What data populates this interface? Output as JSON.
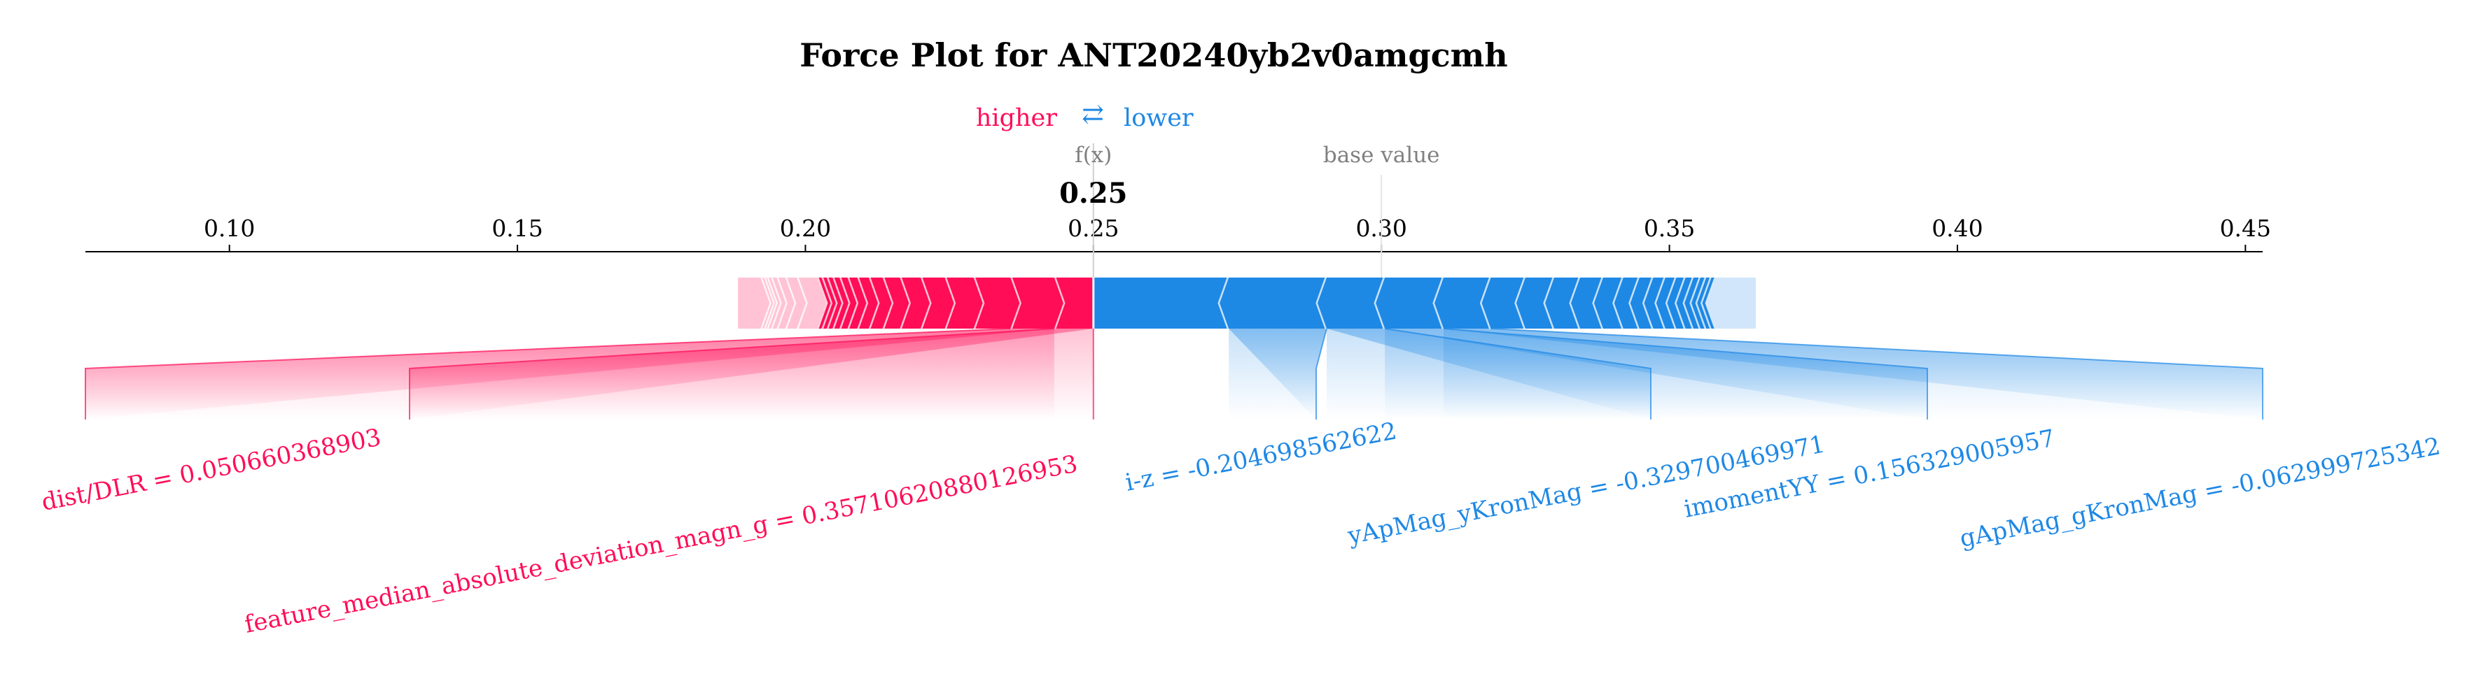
{
  "chart_data": {
    "type": "force",
    "title": "Force Plot for ANT20240yb2v0amgcmh",
    "legend": {
      "higher": "higher",
      "arrows": "⇄",
      "lower": "lower"
    },
    "fx_label": "f(x)",
    "fx_value": 0.25,
    "fx_text": "0.25",
    "base_label": "base value",
    "base_value": 0.3,
    "xlim": [
      0.075,
      0.453
    ],
    "ticks": [
      {
        "value": 0.1,
        "label": "0.10"
      },
      {
        "value": 0.15,
        "label": "0.15"
      },
      {
        "value": 0.2,
        "label": "0.20"
      },
      {
        "value": 0.25,
        "label": "0.25"
      },
      {
        "value": 0.3,
        "label": "0.30"
      },
      {
        "value": 0.35,
        "label": "0.35"
      },
      {
        "value": 0.4,
        "label": "0.40"
      },
      {
        "value": 0.45,
        "label": "0.45"
      }
    ],
    "positive_segments": [
      {
        "start": 0.25,
        "end": 0.2432
      },
      {
        "start": 0.2432,
        "end": 0.2356
      },
      {
        "start": 0.2356,
        "end": 0.2292
      },
      {
        "start": 0.2292,
        "end": 0.2242
      },
      {
        "start": 0.2242,
        "end": 0.22
      },
      {
        "start": 0.22,
        "end": 0.2164
      },
      {
        "start": 0.2164,
        "end": 0.2134
      },
      {
        "start": 0.2134,
        "end": 0.211
      },
      {
        "start": 0.211,
        "end": 0.209
      },
      {
        "start": 0.209,
        "end": 0.2073
      },
      {
        "start": 0.2073,
        "end": 0.2059
      },
      {
        "start": 0.2059,
        "end": 0.2047
      },
      {
        "start": 0.2047,
        "end": 0.2037
      },
      {
        "start": 0.2037,
        "end": 0.2028
      },
      {
        "start": 0.2028,
        "end": 0.202
      },
      {
        "start": 0.202,
        "end": 0.1985
      },
      {
        "start": 0.1985,
        "end": 0.1965
      },
      {
        "start": 0.1965,
        "end": 0.195
      },
      {
        "start": 0.195,
        "end": 0.194
      },
      {
        "start": 0.194,
        "end": 0.1933
      },
      {
        "start": 0.1933,
        "end": 0.1928
      },
      {
        "start": 0.1928,
        "end": 0.1922
      },
      {
        "start": 0.1922,
        "end": 0.1883
      }
    ],
    "negative_segments": [
      {
        "start": 0.25,
        "end": 0.2735
      },
      {
        "start": 0.2735,
        "end": 0.2905
      },
      {
        "start": 0.2905,
        "end": 0.3006
      },
      {
        "start": 0.3006,
        "end": 0.3108
      },
      {
        "start": 0.3108,
        "end": 0.319
      },
      {
        "start": 0.319,
        "end": 0.325
      },
      {
        "start": 0.325,
        "end": 0.33
      },
      {
        "start": 0.33,
        "end": 0.3345
      },
      {
        "start": 0.3345,
        "end": 0.3385
      },
      {
        "start": 0.3385,
        "end": 0.342
      },
      {
        "start": 0.342,
        "end": 0.3448
      },
      {
        "start": 0.3448,
        "end": 0.3472
      },
      {
        "start": 0.3472,
        "end": 0.3493
      },
      {
        "start": 0.3493,
        "end": 0.3512
      },
      {
        "start": 0.3512,
        "end": 0.3528
      },
      {
        "start": 0.3528,
        "end": 0.3542
      },
      {
        "start": 0.3542,
        "end": 0.3554
      },
      {
        "start": 0.3554,
        "end": 0.3564
      },
      {
        "start": 0.3564,
        "end": 0.3573
      },
      {
        "start": 0.3573,
        "end": 0.3581
      },
      {
        "start": 0.3581,
        "end": 0.365
      }
    ],
    "features": [
      {
        "text": "dist/DLR = 0.050660368903",
        "side": "positive",
        "start": 0.2432,
        "end": 0.2356,
        "tier": 0
      },
      {
        "text": "feature_median_absolute_deviation_magn_g = 0.35710620880126953",
        "side": "positive",
        "start": 0.25,
        "end": 0.2432,
        "tier": 1
      },
      {
        "text": "i-z = -0.204698562622",
        "side": "negative",
        "start": 0.2735,
        "end": 0.2905,
        "tier": 0
      },
      {
        "text": "yApMag_yKronMag = -0.329700469971",
        "side": "negative",
        "start": 0.2905,
        "end": 0.3006,
        "tier": 0
      },
      {
        "text": "imomentYY = 0.156329005957",
        "side": "negative",
        "start": 0.3006,
        "end": 0.3108,
        "tier": 0
      },
      {
        "text": "gApMag_gKronMag = -0.062999725342",
        "side": "negative",
        "start": 0.3108,
        "end": 0.319,
        "tier": 0
      }
    ],
    "colors": {
      "positive": "#ff0d57",
      "positive_light": "#ffc3d5",
      "negative": "#1e88e5",
      "negative_light": "#d1e6fa",
      "axis": "#000000",
      "muted": "#808080"
    }
  }
}
